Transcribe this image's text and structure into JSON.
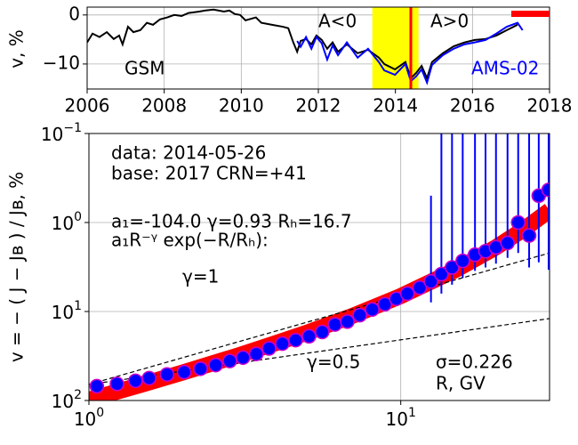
{
  "chart_data": [
    {
      "type": "line",
      "ylabel": "v, %",
      "xlim": [
        2006,
        2018
      ],
      "xticks": [
        2006,
        2008,
        2010,
        2012,
        2014,
        2016,
        2018
      ],
      "ylim": [
        -15.1,
        1.6
      ],
      "yticks": [
        0,
        {
          "value": -10,
          "label": "−10"
        }
      ],
      "grid": true,
      "span": [
        2013.4,
        2014.6
      ],
      "span_color": "#ffff00",
      "vline": 2014.4,
      "vline_color": "#ff0000",
      "annotations": [
        "A<0",
        "A>0"
      ],
      "series": [
        {
          "name": "GSM",
          "color": "#000000",
          "x": [
            2006.0,
            2006.14,
            2006.32,
            2006.51,
            2006.69,
            2006.83,
            2006.92,
            2007.06,
            2007.2,
            2007.38,
            2007.55,
            2007.71,
            2007.89,
            2008.08,
            2008.26,
            2008.45,
            2008.63,
            2008.91,
            2009.05,
            2009.28,
            2009.55,
            2009.69,
            2009.83,
            2009.97,
            2010.11,
            2010.38,
            2010.52,
            2010.8,
            2011.08,
            2011.22,
            2011.35,
            2011.45,
            2011.54,
            2011.68,
            2011.82,
            2011.95,
            2012.09,
            2012.23,
            2012.37,
            2012.51,
            2012.74,
            2013.02,
            2013.29,
            2013.57,
            2013.71,
            2013.99,
            2014.26,
            2014.4,
            2014.54,
            2014.68,
            2014.82,
            2014.95,
            2015.23,
            2015.51,
            2015.79,
            2016.06,
            2016.34,
            2016.62,
            2016.89,
            2017.17
          ],
          "values": [
            -5.6,
            -3.8,
            -4.5,
            -3.5,
            -4.9,
            -4.2,
            -6.0,
            -2.4,
            -3.5,
            -3.1,
            -1.6,
            -2.0,
            -0.9,
            -0.5,
            0,
            -0.2,
            0.4,
            0.7,
            0.9,
            1.1,
            0.7,
            0.9,
            0.2,
            0,
            -1.1,
            -0.5,
            -1.6,
            -2.0,
            -2.4,
            -2.7,
            -5.6,
            -7.5,
            -5.3,
            -4.9,
            -6.0,
            -4.2,
            -5.1,
            -6.9,
            -5.6,
            -7.5,
            -6.0,
            -7.8,
            -7.1,
            -8.7,
            -10.0,
            -11.1,
            -9.6,
            -12.9,
            -11.8,
            -10.4,
            -12.9,
            -9.6,
            -7.8,
            -6.4,
            -5.6,
            -5.1,
            -4.9,
            -4.2,
            -3.1,
            -2.0
          ]
        },
        {
          "name": "AMS-02",
          "color": "#0000ff",
          "x": [
            2011.45,
            2011.54,
            2011.68,
            2011.82,
            2011.95,
            2012.09,
            2012.23,
            2012.37,
            2012.51,
            2012.74,
            2013.02,
            2013.29,
            2013.57,
            2013.71,
            2013.99,
            2014.26,
            2014.4,
            2014.54,
            2014.68,
            2014.82,
            2014.95,
            2015.23,
            2015.51,
            2015.79,
            2016.06,
            2016.34,
            2016.62,
            2016.89,
            2017.17,
            2017.3
          ],
          "values": [
            -5.3,
            -6.5,
            -4.5,
            -6.9,
            -4.5,
            -5.8,
            -9.1,
            -6.2,
            -8.2,
            -5.6,
            -8.7,
            -6.9,
            -9.6,
            -11.3,
            -12.2,
            -10.0,
            -13.5,
            -12.5,
            -11.1,
            -13.8,
            -10.2,
            -8.2,
            -6.9,
            -6.0,
            -5.6,
            -5.1,
            -3.8,
            -2.4,
            -1.6,
            -3.1
          ]
        }
      ]
    },
    {
      "type": "scatter",
      "xlabel": "R, GV",
      "ylabel": "v = − ( J − Jʙ ) / Jʙ, %",
      "xlog": true,
      "ylog": true,
      "yinverted": true,
      "grid": true,
      "xlim": [
        1,
        30
      ],
      "xticks": [
        {
          "value": 1,
          "label": "10",
          "exponent": "0"
        },
        {
          "value": 10,
          "label": "10",
          "exponent": "1"
        }
      ],
      "ylim": [
        0.1,
        100
      ],
      "yticks": [
        {
          "value": 0.1,
          "label": "10",
          "exponent": "−1"
        },
        {
          "value": 1,
          "label": "10",
          "exponent": "0"
        },
        {
          "value": 10,
          "label": "10",
          "exponent": "1"
        },
        {
          "value": 100,
          "label": "10",
          "exponent": "2"
        }
      ],
      "annotations": [
        "data: 2014-05-26",
        "base: 2017   CRN=+41",
        "a₁=-104.0  γ=0.93  Rₕ=16.7",
        "a₁R⁻ᵞ exp(−R/Rₕ):",
        "γ=1",
        "γ=0.5",
        "σ=0.226"
      ],
      "series": [
        {
          "kind": "band",
          "color": "#ff0000",
          "x": [
            1,
            1.5,
            2,
            3,
            4,
            5,
            7,
            10,
            15,
            20,
            25,
            30
          ],
          "values": [
            98.0,
            65.2,
            48.4,
            31.3,
            22.5,
            17.3,
            11.2,
            6.71,
            3.41,
            1.94,
            1.17,
            0.73
          ]
        },
        {
          "kind": "dashed",
          "color": "#000000",
          "x": [
            1,
            30
          ],
          "values": [
            66,
            2.2
          ]
        },
        {
          "kind": "dashed",
          "color": "#000000",
          "x": [
            1,
            30
          ],
          "values": [
            66,
            12
          ]
        },
        {
          "kind": "markers",
          "color": "#0000ff",
          "edgecolor": "#cc00cc",
          "errcolor": "#0000ff",
          "x": [
            1.06,
            1.23,
            1.41,
            1.56,
            1.78,
            2.02,
            2.28,
            2.55,
            2.83,
            3.12,
            3.44,
            3.78,
            4.17,
            4.6,
            5.08,
            5.6,
            6.15,
            6.74,
            7.39,
            8.1,
            8.89,
            9.68,
            10.5,
            11.5,
            12.5,
            13.5,
            14.6,
            15.8,
            17.3,
            18.7,
            20.2,
            22,
            23.8,
            25.8,
            27.7,
            29.8
          ],
          "values": [
            69,
            65,
            60,
            56,
            51,
            48,
            44,
            40,
            36,
            33,
            30,
            26,
            23,
            21,
            19,
            17,
            14,
            13,
            11,
            9.5,
            8.3,
            7.2,
            6.3,
            5.4,
            4.6,
            3.8,
            3.2,
            2.7,
            2.3,
            2.1,
            1.9,
            1.7,
            1.0,
            1.4,
            0.5,
            0.43
          ],
          "err_low": [
            null,
            null,
            null,
            null,
            null,
            null,
            null,
            null,
            null,
            null,
            null,
            null,
            null,
            null,
            null,
            null,
            null,
            null,
            null,
            null,
            null,
            null,
            null,
            null,
            7.9,
            6.3,
            5,
            4.2,
            3.5,
            3.2,
            2.9,
            2.5,
            2.2,
            3.2,
            2.8,
            3.4
          ],
          "err_high": [
            null,
            null,
            null,
            null,
            null,
            null,
            null,
            null,
            null,
            null,
            null,
            null,
            null,
            null,
            null,
            null,
            null,
            null,
            null,
            null,
            null,
            null,
            null,
            null,
            0.5,
            0.05,
            0.05,
            0.05,
            0.05,
            0.05,
            0.05,
            0.05,
            0.05,
            0.05,
            0.05,
            0.05
          ]
        }
      ]
    }
  ]
}
